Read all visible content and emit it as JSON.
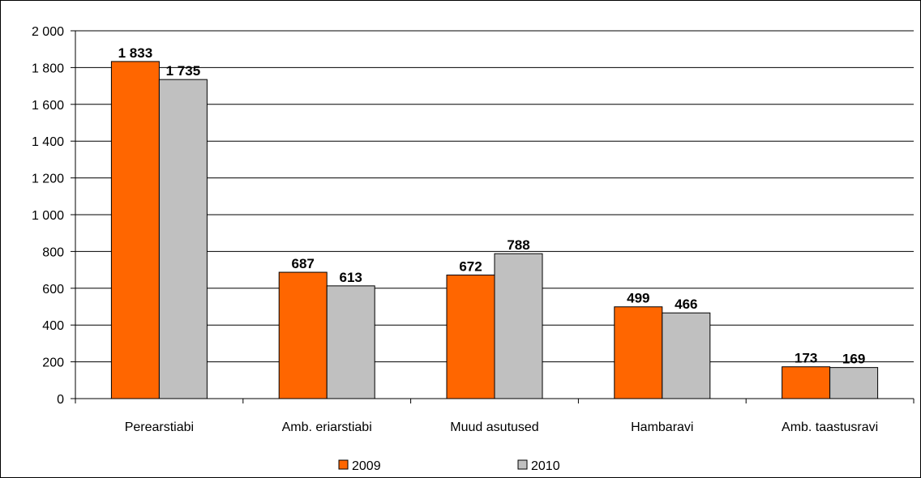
{
  "chart_data": {
    "type": "bar",
    "categories": [
      "Perearstiabi",
      "Amb. eriarstiabi",
      "Muud asutused",
      "Hambaravi",
      "Amb. taastusravi"
    ],
    "series": [
      {
        "name": "2009",
        "values": [
          1833,
          687,
          672,
          499,
          173
        ],
        "labels": [
          "1 833",
          "687",
          "672",
          "499",
          "173"
        ],
        "color": "#FF6600"
      },
      {
        "name": "2010",
        "values": [
          1735,
          613,
          788,
          466,
          169
        ],
        "labels": [
          "1 735",
          "613",
          "788",
          "466",
          "169"
        ],
        "color": "#C0C0C0"
      }
    ],
    "ylim": [
      0,
      2000
    ],
    "yticks": [
      0,
      200,
      400,
      600,
      800,
      1000,
      1200,
      1400,
      1600,
      1800,
      2000
    ],
    "ytick_labels": [
      "0",
      "200",
      "400",
      "600",
      "800",
      "1 000",
      "1 200",
      "1 400",
      "1 600",
      "1 800",
      "2 000"
    ],
    "grid": true,
    "legend_position": "bottom",
    "title": "",
    "xlabel": "",
    "ylabel": ""
  }
}
